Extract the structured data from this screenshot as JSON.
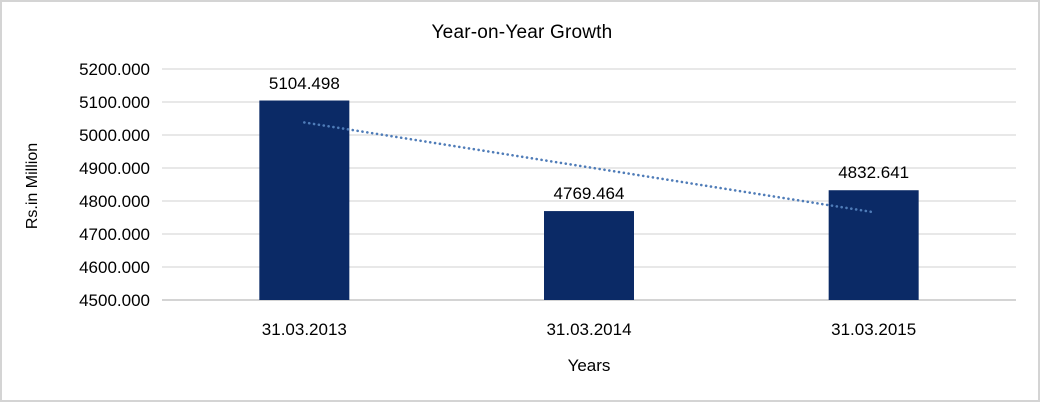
{
  "window": {
    "background_color": "#ffffff",
    "border_color": "#d4d4d4"
  },
  "chart_data": {
    "type": "bar",
    "title": "Year-on-Year Growth",
    "xlabel": "Years",
    "ylabel": "Rs.in Million",
    "categories": [
      "31.03.2013",
      "31.03.2014",
      "31.03.2015"
    ],
    "values": [
      5104.498,
      4769.464,
      4832.641
    ],
    "value_labels": [
      "5104.498",
      "4769.464",
      "4832.641"
    ],
    "ylim": [
      4500,
      5200
    ],
    "ytick_step": 100,
    "ytick_labels": [
      "4500.000",
      "4600.000",
      "4700.000",
      "4800.000",
      "4900.000",
      "5000.000",
      "5100.000",
      "5200.000"
    ],
    "grid": true,
    "legend_position": "none",
    "bar_color": "#0b2a66",
    "gridline_color": "#d9d9d9",
    "axis_line_color": "#c6c6c6",
    "text_color": "#000000",
    "trendline": {
      "type": "linear",
      "style": "dotted",
      "color": "#4f7cb8",
      "start": {
        "category": "31.03.2013",
        "value": 5038
      },
      "end": {
        "category": "31.03.2015",
        "value": 4766
      }
    }
  }
}
